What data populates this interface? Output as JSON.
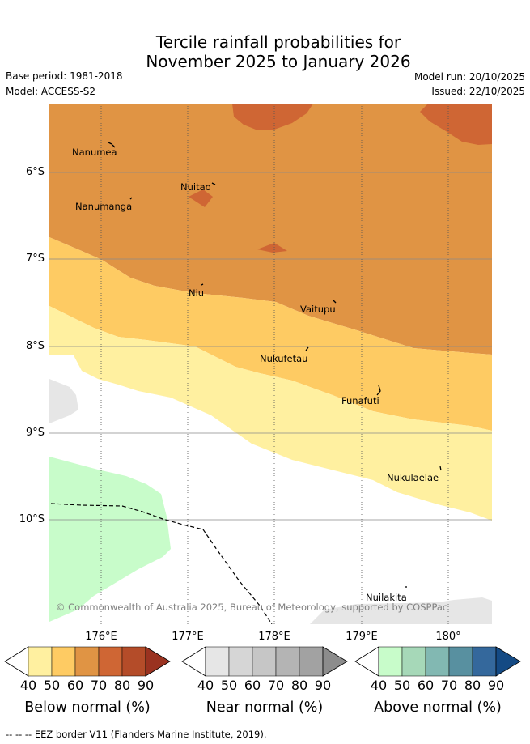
{
  "title": {
    "line1": "Tercile rainfall probabilities for",
    "line2": "November 2025 to January 2026"
  },
  "meta": {
    "base_period": "Base period: 1981-2018",
    "model": "Model: ACCESS-S2",
    "model_run": "Model run: 20/10/2025",
    "issued": "Issued: 22/10/2025"
  },
  "map": {
    "places": [
      "Nanumea",
      "Nuitao",
      "Nanumanga",
      "Niu",
      "Vaitupu",
      "Nukufetau",
      "Funafuti",
      "Nukulaelae",
      "Nuilakita"
    ],
    "lat_labels": [
      "6°S",
      "7°S",
      "8°S",
      "9°S",
      "10°S"
    ],
    "lon_labels": [
      "176°E",
      "177°E",
      "178°E",
      "179°E",
      "180°"
    ],
    "copyright": "© Commonwealth of Australia 2025, Bureau of Meteorology, supported by COSPPac"
  },
  "colorbars": [
    {
      "title": "Below normal (%)",
      "ticks": [
        "40",
        "50",
        "60",
        "70",
        "80",
        "90"
      ],
      "colors": [
        "#ffffff",
        "#fff0a0",
        "#fecb63",
        "#e09444",
        "#cf6634",
        "#b44c29",
        "#9a3220"
      ]
    },
    {
      "title": "Near normal (%)",
      "ticks": [
        "40",
        "50",
        "60",
        "70",
        "80",
        "90"
      ],
      "colors": [
        "#ffffff",
        "#e6e6e6",
        "#d6d6d6",
        "#c6c6c6",
        "#b4b4b4",
        "#a2a2a2",
        "#8c8c8c"
      ]
    },
    {
      "title": "Above normal (%)",
      "ticks": [
        "40",
        "50",
        "60",
        "70",
        "80",
        "90"
      ],
      "colors": [
        "#ffffff",
        "#c8fcca",
        "#a6d8b8",
        "#82b8b2",
        "#5890a0",
        "#34689c",
        "#144a84"
      ]
    }
  ],
  "legend": {
    "eez": "-- -- -- EEZ border V11 (Flanders Marine Institute, 2019)."
  },
  "colors": {
    "bn_40": "#fff0a0",
    "bn_50": "#fecb63",
    "bn_60": "#e09444",
    "bn_70": "#cf6634",
    "nn_40": "#e6e6e6",
    "an_40": "#c8fcca",
    "grid": "#555555"
  }
}
